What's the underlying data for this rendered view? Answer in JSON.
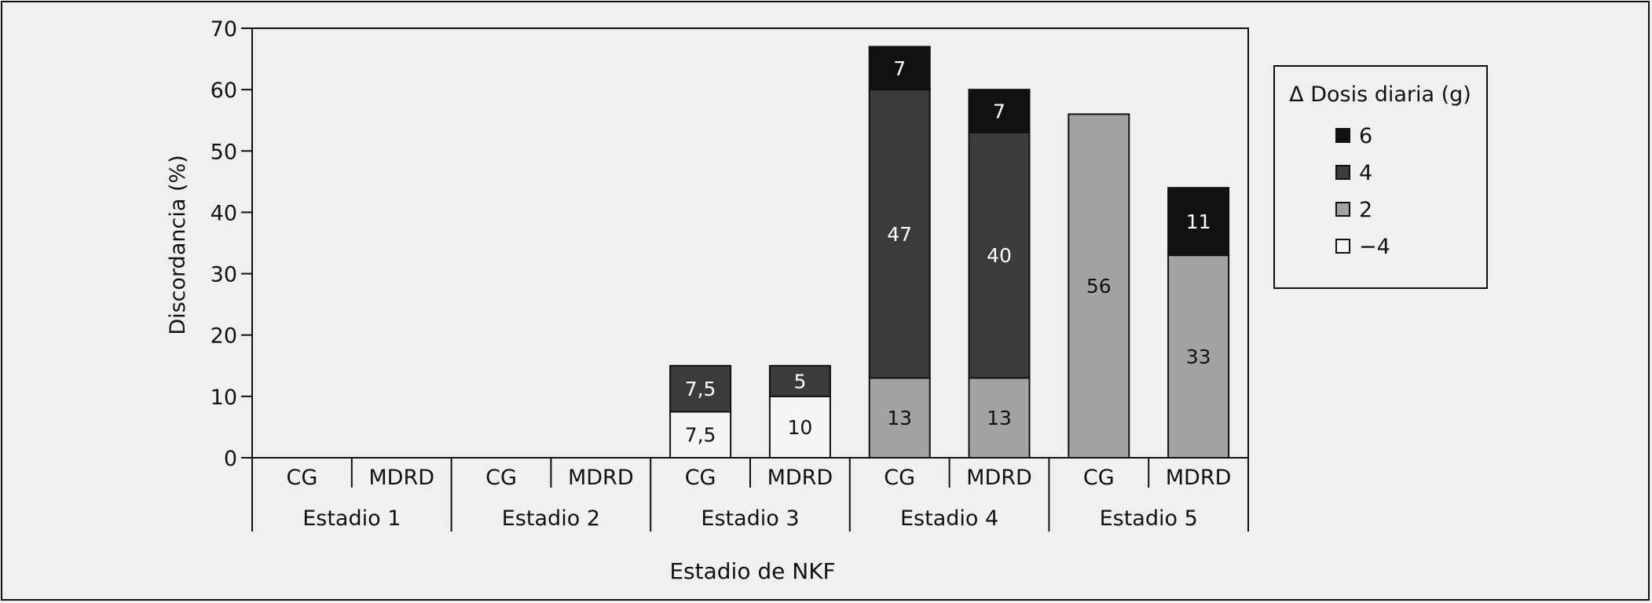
{
  "chart_data": {
    "type": "bar",
    "stacked": true,
    "xlabel": "Estadio de NKF",
    "ylabel": "Discordancia (%)",
    "ylim": [
      0,
      70
    ],
    "yticks": [
      "0",
      "10",
      "20",
      "30",
      "40",
      "50",
      "60",
      "70"
    ],
    "groups": [
      "Estadio 1",
      "Estadio 2",
      "Estadio 3",
      "Estadio 4",
      "Estadio 5"
    ],
    "categories": [
      "CG",
      "MDRD",
      "CG",
      "MDRD",
      "CG",
      "MDRD",
      "CG",
      "MDRD",
      "CG",
      "MDRD"
    ],
    "legend_title": "Δ Dosis diaria (g)",
    "legend_position": "right",
    "series": [
      {
        "name": "−4",
        "color": "#f5f5f5",
        "text_color": "#111111",
        "values": [
          0,
          0,
          0,
          0,
          7.5,
          10,
          0,
          0,
          0,
          0
        ],
        "labels": [
          "",
          "",
          "",
          "",
          "7,5",
          "10",
          "",
          "",
          "",
          ""
        ]
      },
      {
        "name": "2",
        "color": "#a3a3a3",
        "text_color": "#111111",
        "values": [
          0,
          0,
          0,
          0,
          0,
          0,
          13,
          13,
          56,
          33
        ],
        "labels": [
          "",
          "",
          "",
          "",
          "",
          "",
          "13",
          "13",
          "56",
          "33"
        ]
      },
      {
        "name": "4",
        "color": "#3b3b3b",
        "text_color": "#ffffff",
        "values": [
          0,
          0,
          0,
          0,
          7.5,
          5,
          47,
          40,
          0,
          0
        ],
        "labels": [
          "",
          "",
          "",
          "",
          "7,5",
          "5",
          "47",
          "40",
          "",
          ""
        ]
      },
      {
        "name": "6",
        "color": "#111111",
        "text_color": "#ffffff",
        "values": [
          0,
          0,
          0,
          0,
          0,
          0,
          7,
          7,
          0,
          11
        ],
        "labels": [
          "",
          "",
          "",
          "",
          "",
          "",
          "7",
          "7",
          "",
          "11"
        ]
      }
    ]
  }
}
